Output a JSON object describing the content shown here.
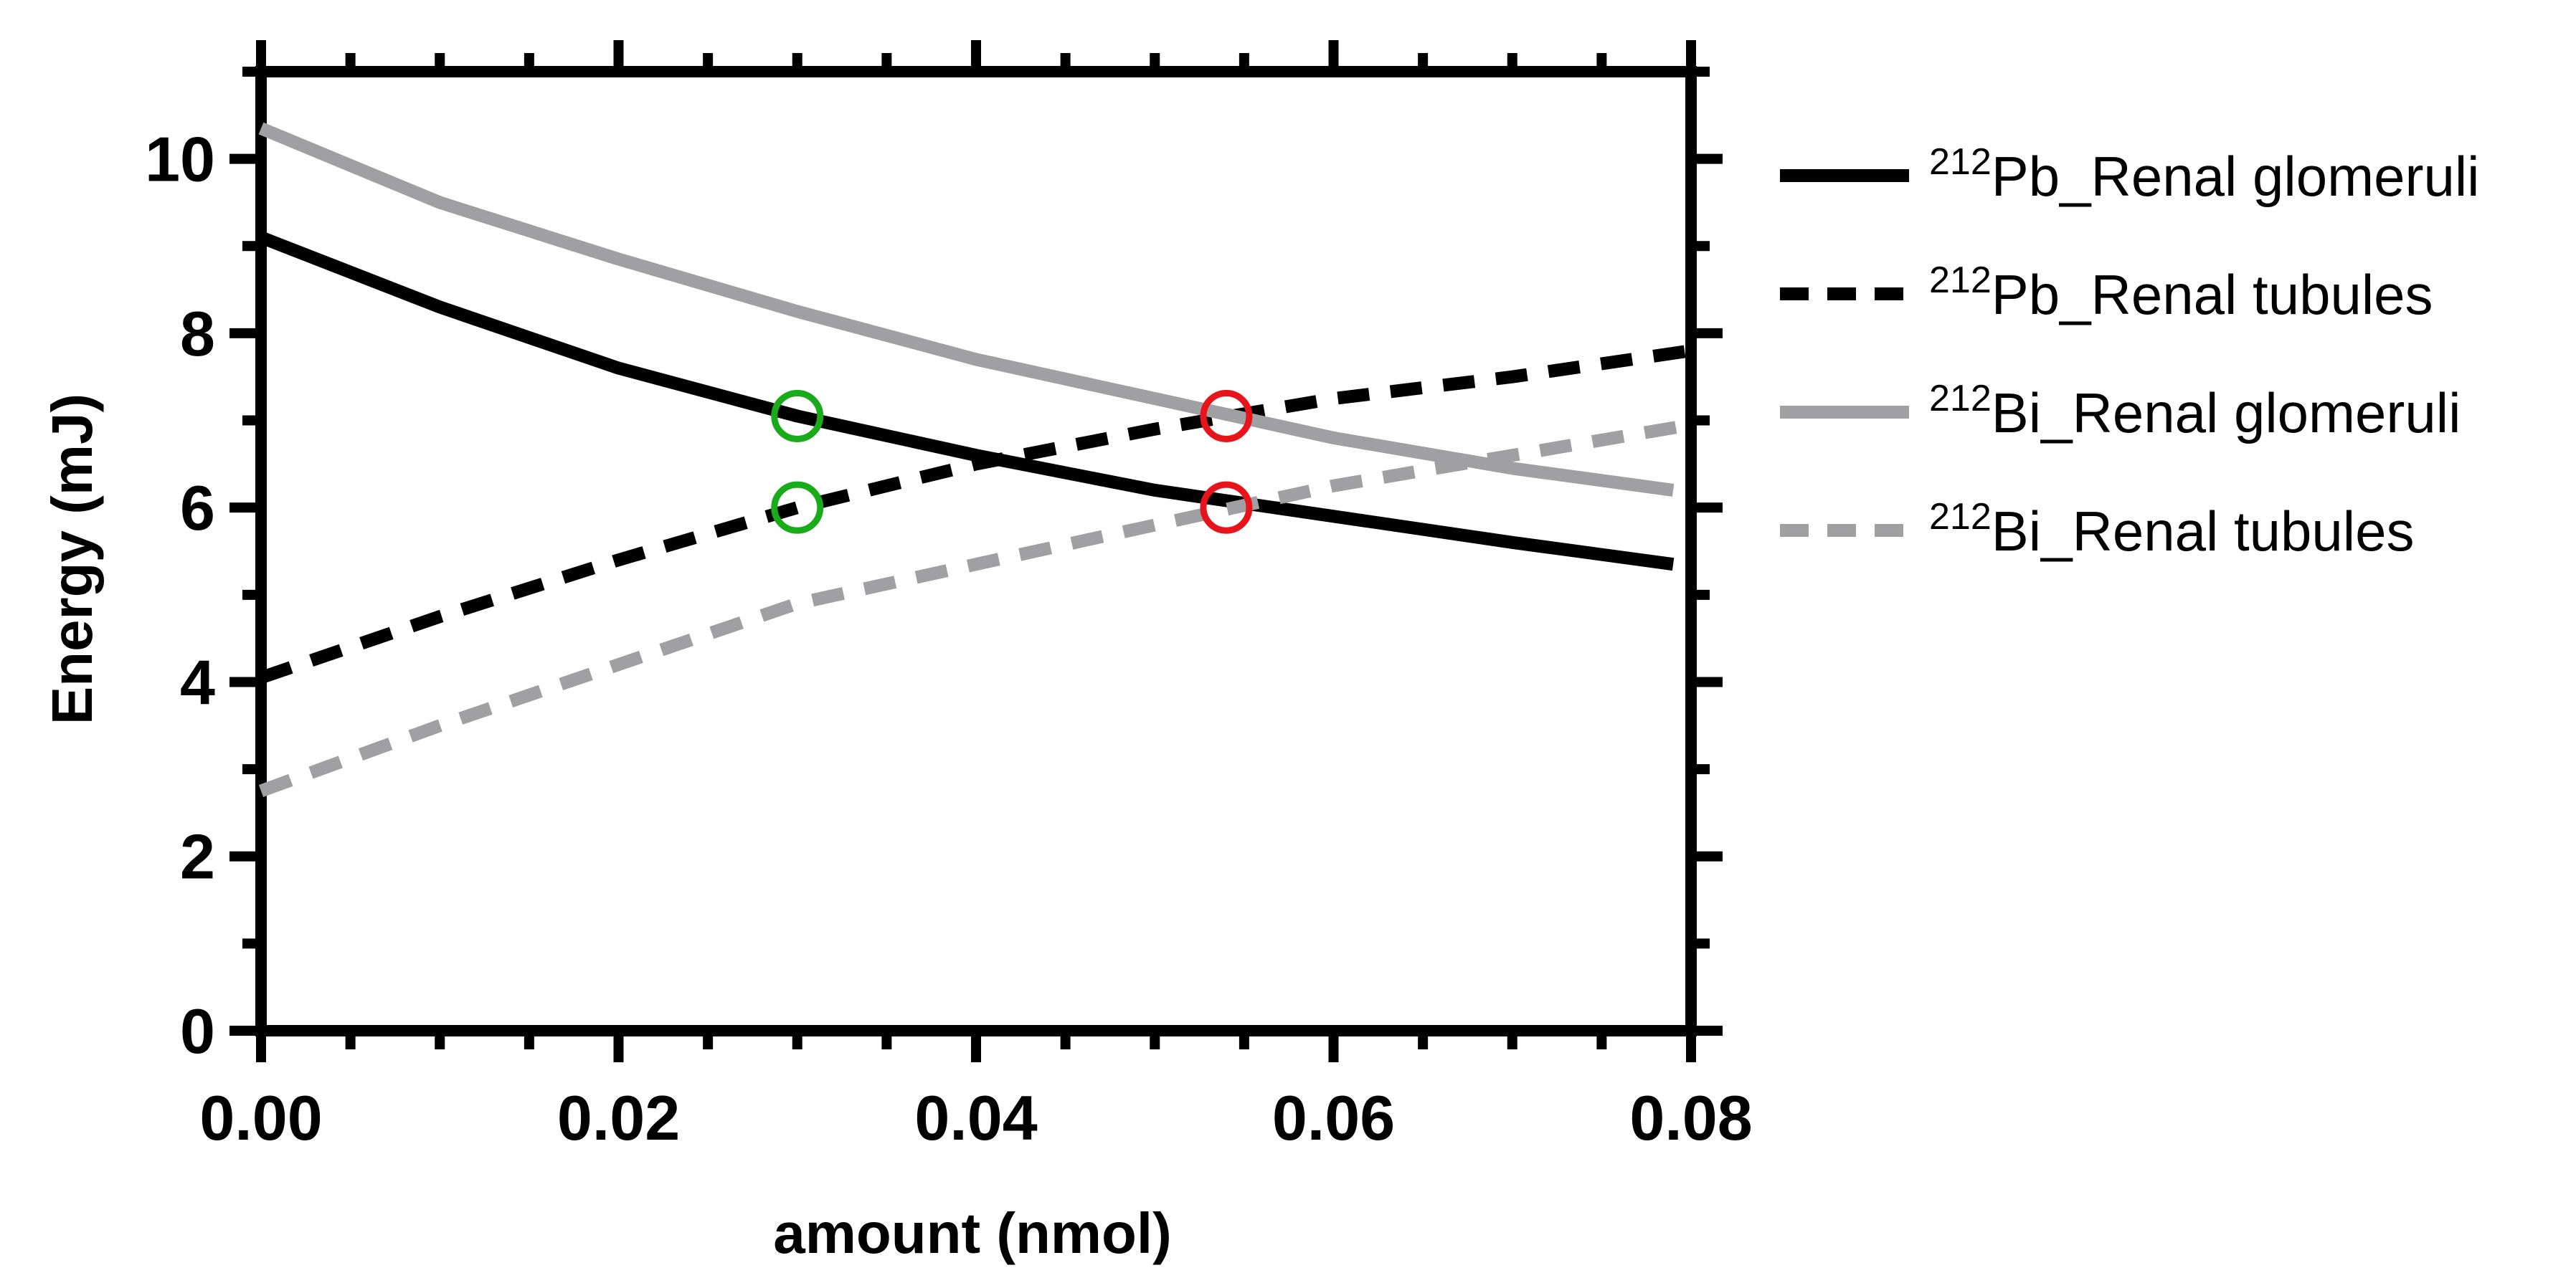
{
  "chart_data": {
    "type": "line",
    "xlabel": "amount (nmol)",
    "ylabel": "Energy (mJ)",
    "xlim": [
      0,
      0.08
    ],
    "ylim": [
      0,
      11
    ],
    "x_ticks": [
      "0.00",
      "0.02",
      "0.04",
      "0.06",
      "0.08"
    ],
    "y_ticks": [
      "0",
      "2",
      "4",
      "6",
      "8",
      "10"
    ],
    "legend_position": "right",
    "series": [
      {
        "name": "²¹²Pb_Renal glomeruli",
        "label_sup": "212",
        "label_rest": "Pb_Renal glomeruli",
        "color": "#000000",
        "dash": "solid",
        "x": [
          0.0,
          0.01,
          0.02,
          0.03,
          0.04,
          0.05,
          0.06,
          0.07,
          0.079
        ],
        "y": [
          9.1,
          8.3,
          7.6,
          7.05,
          6.6,
          6.2,
          5.9,
          5.6,
          5.35
        ]
      },
      {
        "name": "²¹²Pb_Renal tubules",
        "label_sup": "212",
        "label_rest": "Pb_Renal tubules",
        "color": "#000000",
        "dash": "dashed",
        "x": [
          0.0,
          0.01,
          0.02,
          0.03,
          0.04,
          0.05,
          0.06,
          0.07,
          0.08
        ],
        "y": [
          4.05,
          4.75,
          5.4,
          6.0,
          6.5,
          6.9,
          7.25,
          7.5,
          7.8
        ]
      },
      {
        "name": "²¹²Bi_Renal glomeruli",
        "label_sup": "212",
        "label_rest": "Bi_Renal glomeruli",
        "color": "#a0a0a3",
        "dash": "solid",
        "x": [
          0.0,
          0.01,
          0.02,
          0.03,
          0.04,
          0.05,
          0.06,
          0.07,
          0.079
        ],
        "y": [
          10.35,
          9.5,
          8.85,
          8.25,
          7.7,
          7.25,
          6.8,
          6.45,
          6.2
        ]
      },
      {
        "name": "²¹²Bi_Renal tubules",
        "label_sup": "212",
        "label_rest": "Bi_Renal tubules",
        "color": "#a0a0a3",
        "dash": "dashed",
        "x": [
          0.0,
          0.01,
          0.02,
          0.03,
          0.04,
          0.05,
          0.06,
          0.07,
          0.08
        ],
        "y": [
          2.75,
          3.5,
          4.2,
          4.9,
          5.35,
          5.8,
          6.25,
          6.6,
          6.95
        ]
      }
    ],
    "markers": [
      {
        "x": 0.03,
        "y": 7.05,
        "color": "#1aab1a",
        "shape": "open-circle"
      },
      {
        "x": 0.03,
        "y": 6.0,
        "color": "#1aab1a",
        "shape": "open-circle"
      },
      {
        "x": 0.054,
        "y": 7.05,
        "color": "#e8141b",
        "shape": "open-circle"
      },
      {
        "x": 0.054,
        "y": 6.0,
        "color": "#e8141b",
        "shape": "open-circle"
      }
    ]
  }
}
